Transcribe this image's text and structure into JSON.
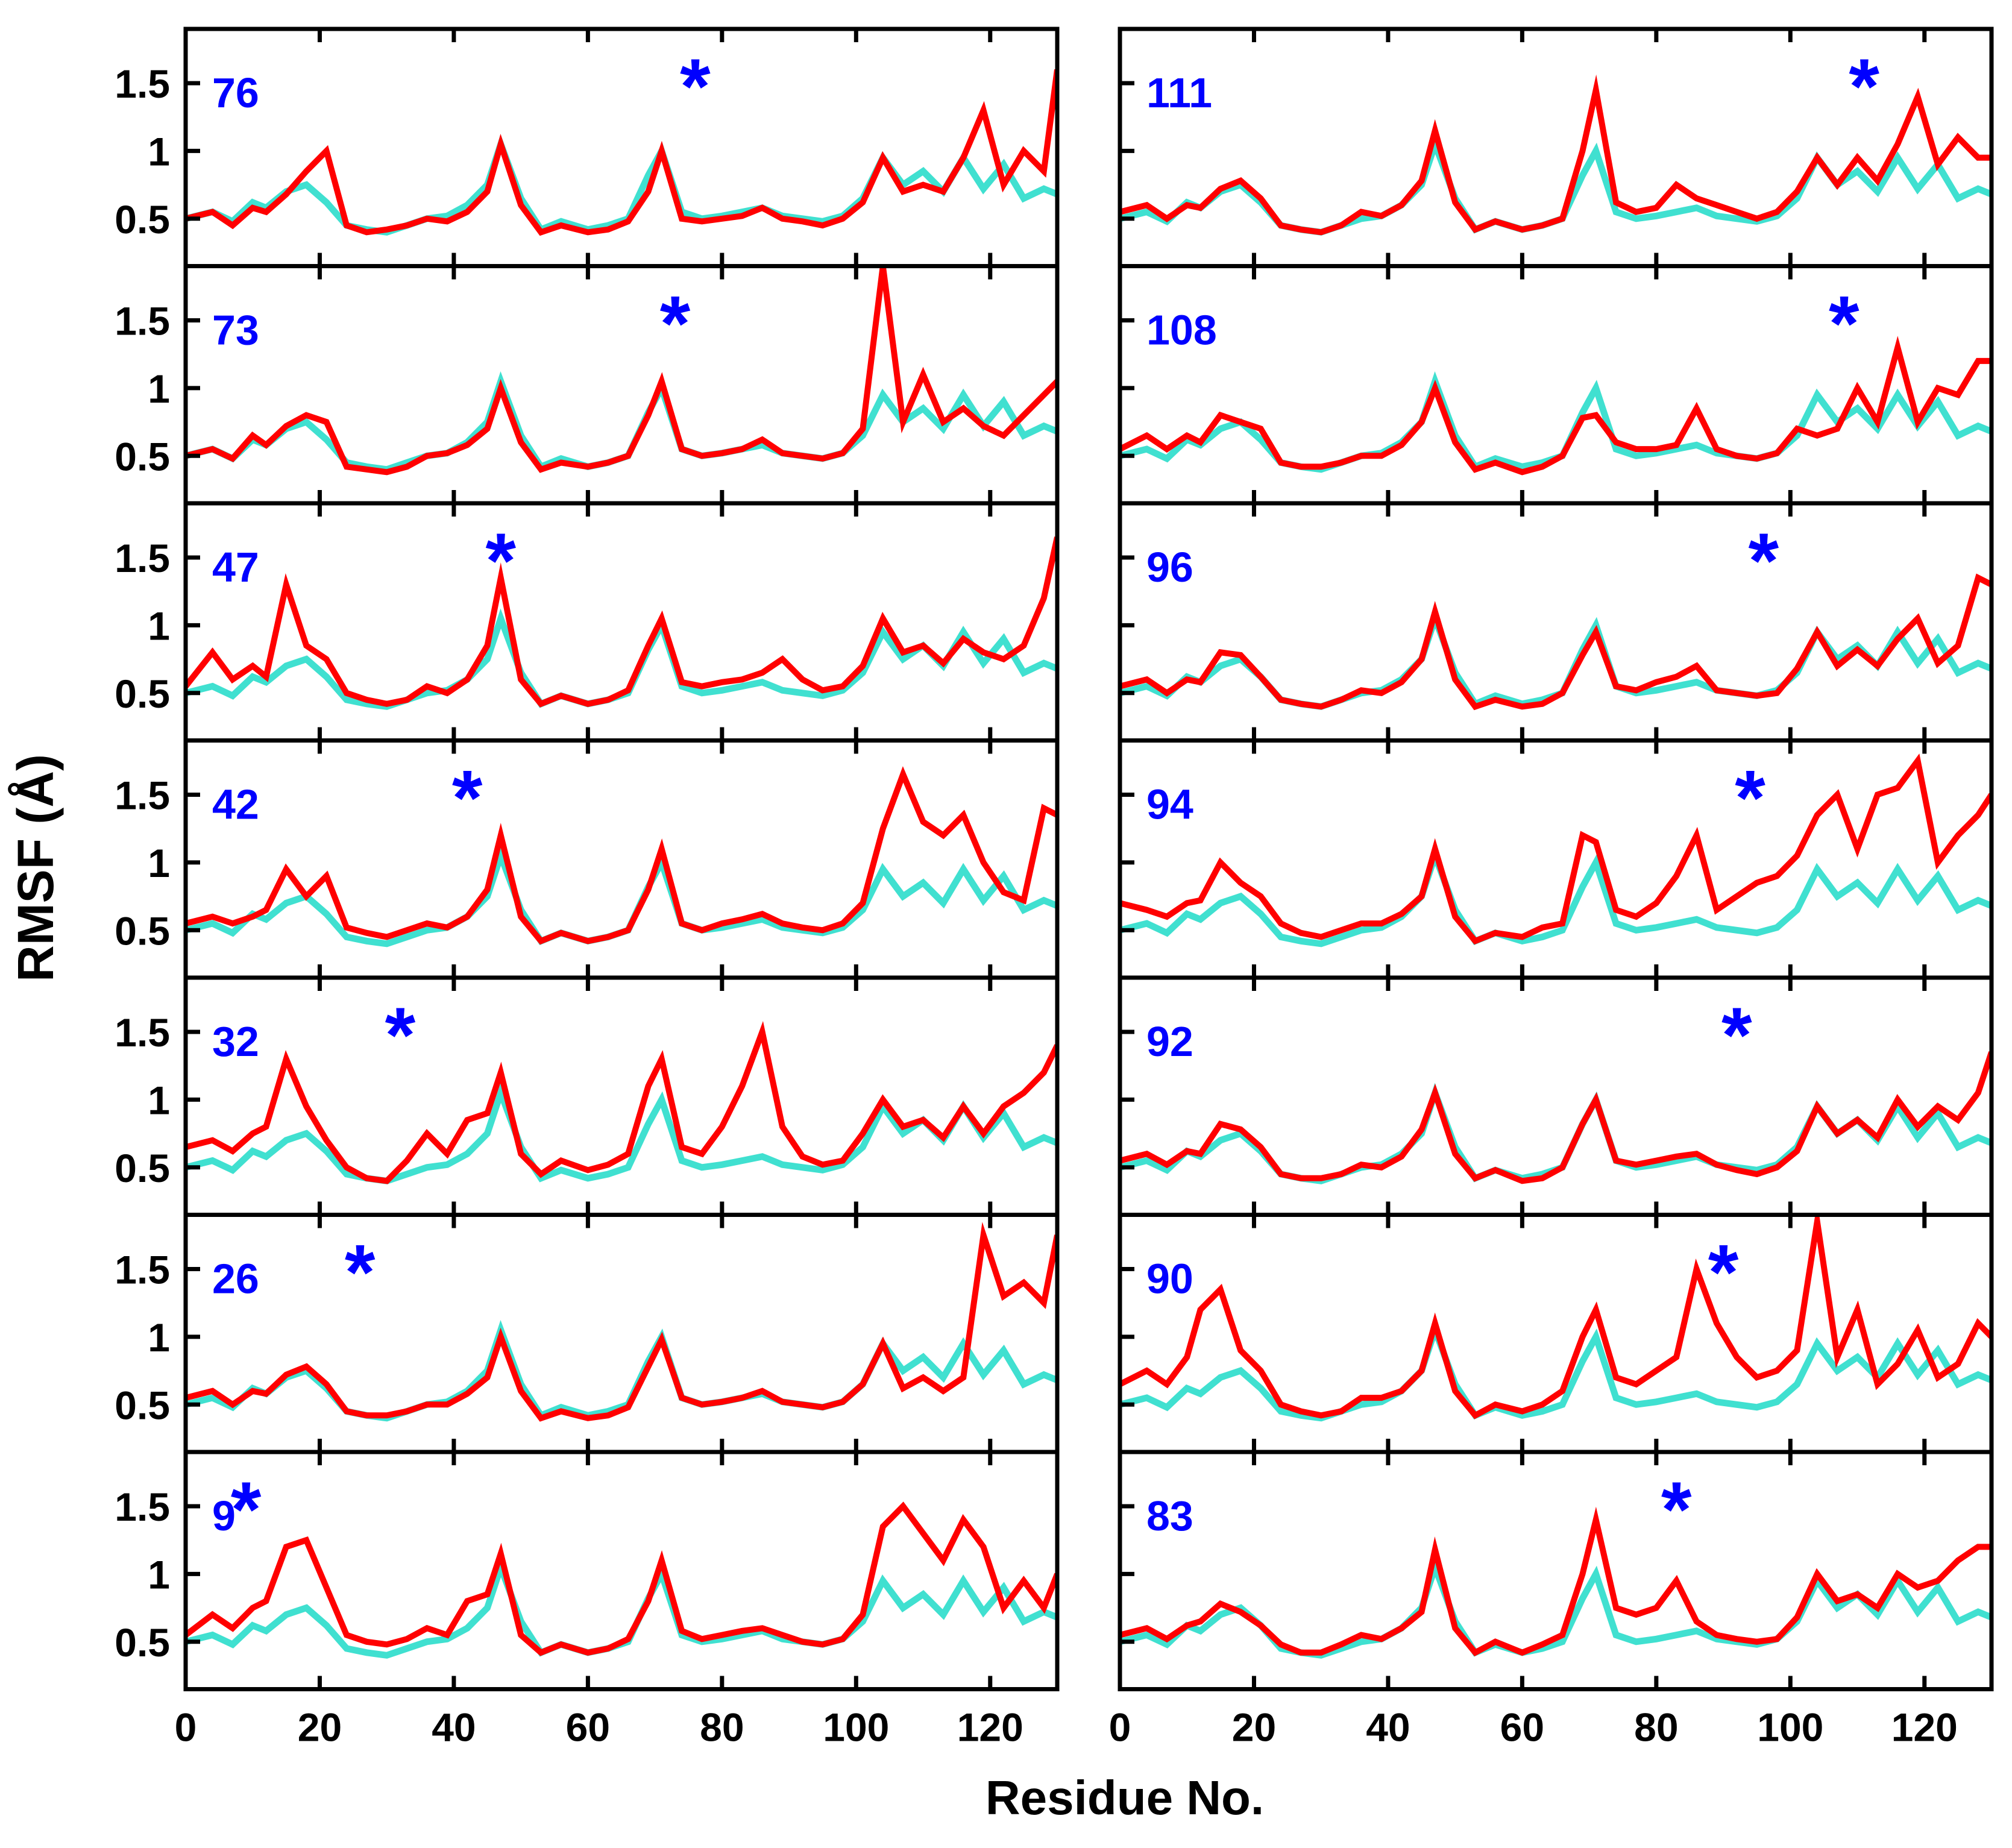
{
  "chart_data": {
    "type": "line",
    "ylabel": "RMSF (Å)",
    "xlabel": "Residue No.",
    "xlim": [
      0,
      130
    ],
    "ylim": [
      0.15,
      1.9
    ],
    "xticks": [
      0,
      20,
      40,
      60,
      80,
      100,
      120
    ],
    "xtick_labels": [
      "0",
      "20",
      "40",
      "60",
      "80",
      "100",
      "120"
    ],
    "yticks": [
      0.5,
      1,
      1.5
    ],
    "ytick_labels": [
      "0.5",
      "1",
      "1.5"
    ],
    "marker_symbol": "*",
    "colors": {
      "reference": "#40e0d0",
      "mutant": "#ff0000",
      "label": "#0000ff",
      "axis": "#000000"
    },
    "series_names": [
      "reference (cyan)",
      "mutant (red)"
    ],
    "reference": {
      "x": [
        0,
        4,
        7,
        10,
        12,
        15,
        18,
        21,
        24,
        27,
        30,
        33,
        36,
        39,
        42,
        45,
        47,
        50,
        53,
        56,
        60,
        63,
        66,
        69,
        71,
        74,
        77,
        80,
        83,
        86,
        89,
        92,
        95,
        98,
        101,
        104,
        107,
        110,
        113,
        116,
        119,
        122,
        125,
        128,
        130
      ],
      "y": [
        0.5,
        0.55,
        0.48,
        0.62,
        0.58,
        0.7,
        0.75,
        0.62,
        0.45,
        0.42,
        0.4,
        0.45,
        0.5,
        0.52,
        0.6,
        0.75,
        1.05,
        0.65,
        0.42,
        0.48,
        0.42,
        0.45,
        0.5,
        0.82,
        1.0,
        0.55,
        0.5,
        0.52,
        0.55,
        0.58,
        0.52,
        0.5,
        0.48,
        0.52,
        0.65,
        0.95,
        0.75,
        0.85,
        0.7,
        0.95,
        0.72,
        0.9,
        0.65,
        0.72,
        0.68
      ]
    },
    "panels": [
      {
        "label": "76",
        "star": 76,
        "mutant": [
          0.5,
          0.55,
          0.45,
          0.58,
          0.55,
          0.68,
          0.85,
          1.0,
          0.45,
          0.4,
          0.42,
          0.45,
          0.5,
          0.48,
          0.55,
          0.7,
          1.05,
          0.6,
          0.4,
          0.45,
          0.4,
          0.42,
          0.48,
          0.7,
          1.0,
          0.5,
          0.48,
          0.5,
          0.52,
          0.58,
          0.5,
          0.48,
          0.45,
          0.5,
          0.62,
          0.95,
          0.7,
          0.75,
          0.7,
          0.95,
          1.3,
          0.75,
          1.0,
          0.85,
          1.6
        ]
      },
      {
        "label": "73",
        "star": 73,
        "mutant": [
          0.5,
          0.55,
          0.48,
          0.65,
          0.58,
          0.72,
          0.8,
          0.75,
          0.42,
          0.4,
          0.38,
          0.42,
          0.5,
          0.52,
          0.58,
          0.7,
          1.0,
          0.6,
          0.4,
          0.45,
          0.42,
          0.45,
          0.5,
          0.8,
          1.05,
          0.55,
          0.5,
          0.52,
          0.55,
          0.62,
          0.52,
          0.5,
          0.48,
          0.52,
          0.7,
          1.9,
          0.75,
          1.1,
          0.75,
          0.85,
          0.72,
          0.65,
          0.8,
          0.95,
          1.05
        ]
      },
      {
        "label": "47",
        "star": 47,
        "mutant": [
          0.55,
          0.8,
          0.6,
          0.7,
          0.62,
          1.3,
          0.85,
          0.75,
          0.5,
          0.45,
          0.42,
          0.45,
          0.55,
          0.5,
          0.6,
          0.85,
          1.35,
          0.6,
          0.42,
          0.48,
          0.42,
          0.45,
          0.52,
          0.85,
          1.05,
          0.58,
          0.55,
          0.58,
          0.6,
          0.65,
          0.75,
          0.6,
          0.52,
          0.55,
          0.7,
          1.05,
          0.8,
          0.85,
          0.72,
          0.9,
          0.8,
          0.75,
          0.85,
          1.2,
          1.65
        ]
      },
      {
        "label": "42",
        "star": 42,
        "mutant": [
          0.55,
          0.6,
          0.55,
          0.6,
          0.65,
          0.95,
          0.75,
          0.9,
          0.52,
          0.48,
          0.45,
          0.5,
          0.55,
          0.52,
          0.6,
          0.8,
          1.2,
          0.6,
          0.42,
          0.48,
          0.42,
          0.45,
          0.5,
          0.8,
          1.1,
          0.55,
          0.5,
          0.55,
          0.58,
          0.62,
          0.55,
          0.52,
          0.5,
          0.55,
          0.7,
          1.25,
          1.65,
          1.3,
          1.2,
          1.35,
          1.0,
          0.78,
          0.72,
          1.4,
          1.35
        ]
      },
      {
        "label": "32",
        "star": 32,
        "mutant": [
          0.65,
          0.7,
          0.62,
          0.75,
          0.8,
          1.3,
          0.95,
          0.7,
          0.5,
          0.42,
          0.4,
          0.55,
          0.75,
          0.6,
          0.85,
          0.9,
          1.2,
          0.6,
          0.45,
          0.55,
          0.48,
          0.52,
          0.6,
          1.1,
          1.3,
          0.65,
          0.6,
          0.8,
          1.1,
          1.5,
          0.8,
          0.58,
          0.52,
          0.55,
          0.75,
          1.0,
          0.8,
          0.85,
          0.72,
          0.95,
          0.75,
          0.95,
          1.05,
          1.2,
          1.4
        ]
      },
      {
        "label": "26",
        "star": 26,
        "mutant": [
          0.55,
          0.6,
          0.5,
          0.6,
          0.58,
          0.72,
          0.78,
          0.65,
          0.45,
          0.42,
          0.42,
          0.45,
          0.5,
          0.5,
          0.58,
          0.7,
          1.0,
          0.6,
          0.4,
          0.45,
          0.4,
          0.42,
          0.48,
          0.78,
          0.98,
          0.55,
          0.5,
          0.52,
          0.55,
          0.6,
          0.52,
          0.5,
          0.48,
          0.52,
          0.65,
          0.95,
          0.62,
          0.7,
          0.6,
          0.7,
          1.75,
          1.3,
          1.4,
          1.25,
          1.75
        ]
      },
      {
        "label": "9",
        "star": 9,
        "mutant": [
          0.55,
          0.7,
          0.6,
          0.75,
          0.8,
          1.2,
          1.25,
          0.9,
          0.55,
          0.5,
          0.48,
          0.52,
          0.6,
          0.55,
          0.8,
          0.85,
          1.15,
          0.55,
          0.42,
          0.48,
          0.42,
          0.45,
          0.52,
          0.8,
          1.1,
          0.58,
          0.52,
          0.55,
          0.58,
          0.6,
          0.55,
          0.5,
          0.48,
          0.52,
          0.7,
          1.35,
          1.5,
          1.3,
          1.1,
          1.4,
          1.2,
          0.75,
          0.95,
          0.75,
          1.0
        ]
      },
      {
        "label": "111",
        "star": 111,
        "mutant": [
          0.55,
          0.6,
          0.5,
          0.6,
          0.58,
          0.72,
          0.78,
          0.65,
          0.45,
          0.42,
          0.4,
          0.45,
          0.55,
          0.52,
          0.6,
          0.78,
          1.15,
          0.62,
          0.42,
          0.48,
          0.42,
          0.45,
          0.5,
          1.0,
          1.45,
          0.62,
          0.55,
          0.58,
          0.75,
          0.65,
          0.6,
          0.55,
          0.5,
          0.55,
          0.7,
          0.95,
          0.75,
          0.95,
          0.78,
          1.05,
          1.4,
          0.9,
          1.1,
          0.95,
          0.95
        ]
      },
      {
        "label": "108",
        "star": 108,
        "mutant": [
          0.55,
          0.65,
          0.55,
          0.65,
          0.6,
          0.8,
          0.75,
          0.7,
          0.45,
          0.42,
          0.42,
          0.45,
          0.5,
          0.5,
          0.58,
          0.75,
          1.0,
          0.6,
          0.4,
          0.45,
          0.38,
          0.42,
          0.5,
          0.78,
          0.8,
          0.6,
          0.55,
          0.55,
          0.58,
          0.85,
          0.55,
          0.5,
          0.48,
          0.52,
          0.7,
          0.65,
          0.7,
          1.0,
          0.75,
          1.3,
          0.75,
          1.0,
          0.95,
          1.2,
          1.2
        ]
      },
      {
        "label": "96",
        "star": 96,
        "mutant": [
          0.55,
          0.6,
          0.5,
          0.6,
          0.58,
          0.8,
          0.78,
          0.62,
          0.45,
          0.42,
          0.4,
          0.45,
          0.52,
          0.5,
          0.58,
          0.75,
          1.1,
          0.6,
          0.4,
          0.45,
          0.4,
          0.42,
          0.5,
          0.78,
          0.95,
          0.55,
          0.52,
          0.58,
          0.62,
          0.7,
          0.52,
          0.5,
          0.48,
          0.5,
          0.68,
          0.95,
          0.7,
          0.82,
          0.7,
          0.9,
          1.05,
          0.72,
          0.85,
          1.35,
          1.3
        ]
      },
      {
        "label": "94",
        "star": 94,
        "mutant": [
          0.7,
          0.65,
          0.6,
          0.7,
          0.72,
          1.0,
          0.85,
          0.75,
          0.55,
          0.48,
          0.45,
          0.5,
          0.55,
          0.55,
          0.62,
          0.75,
          1.1,
          0.6,
          0.42,
          0.48,
          0.45,
          0.52,
          0.55,
          1.2,
          1.15,
          0.65,
          0.6,
          0.7,
          0.9,
          1.2,
          0.65,
          0.75,
          0.85,
          0.9,
          1.05,
          1.35,
          1.5,
          1.1,
          1.5,
          1.55,
          1.75,
          1.0,
          1.2,
          1.35,
          1.5
        ]
      },
      {
        "label": "92",
        "star": 92,
        "mutant": [
          0.55,
          0.6,
          0.52,
          0.62,
          0.6,
          0.82,
          0.78,
          0.65,
          0.45,
          0.42,
          0.42,
          0.45,
          0.52,
          0.5,
          0.58,
          0.78,
          1.05,
          0.6,
          0.42,
          0.48,
          0.4,
          0.42,
          0.5,
          0.82,
          1.0,
          0.55,
          0.52,
          0.55,
          0.58,
          0.6,
          0.52,
          0.48,
          0.45,
          0.5,
          0.62,
          0.95,
          0.75,
          0.85,
          0.72,
          1.0,
          0.8,
          0.95,
          0.85,
          1.05,
          1.35
        ]
      },
      {
        "label": "90",
        "star": 90,
        "mutant": [
          0.65,
          0.75,
          0.65,
          0.85,
          1.2,
          1.35,
          0.9,
          0.75,
          0.5,
          0.45,
          0.42,
          0.45,
          0.55,
          0.55,
          0.6,
          0.75,
          1.1,
          0.6,
          0.42,
          0.5,
          0.45,
          0.5,
          0.6,
          1.0,
          1.2,
          0.7,
          0.65,
          0.75,
          0.85,
          1.5,
          1.1,
          0.85,
          0.7,
          0.75,
          0.9,
          1.85,
          0.85,
          1.2,
          0.65,
          0.8,
          1.05,
          0.7,
          0.8,
          1.1,
          1.0
        ]
      },
      {
        "label": "83",
        "star": 83,
        "mutant": [
          0.55,
          0.6,
          0.52,
          0.62,
          0.65,
          0.78,
          0.72,
          0.62,
          0.48,
          0.42,
          0.42,
          0.48,
          0.55,
          0.52,
          0.6,
          0.72,
          1.18,
          0.6,
          0.42,
          0.5,
          0.42,
          0.48,
          0.55,
          1.0,
          1.4,
          0.75,
          0.7,
          0.75,
          0.95,
          0.65,
          0.55,
          0.52,
          0.5,
          0.52,
          0.68,
          1.0,
          0.8,
          0.85,
          0.75,
          1.0,
          0.9,
          0.95,
          1.1,
          1.2,
          1.2
        ]
      }
    ]
  }
}
